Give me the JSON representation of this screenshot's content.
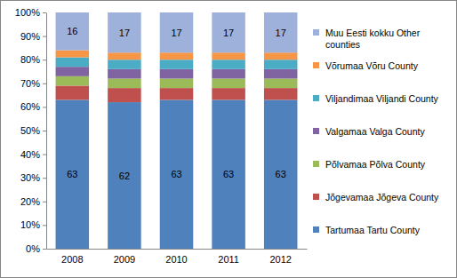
{
  "chart_data": {
    "type": "bar",
    "stacked": true,
    "grid": false,
    "legend": "right",
    "categories": [
      "2008",
      "2009",
      "2010",
      "2011",
      "2012"
    ],
    "ylim": [
      0,
      100
    ],
    "yticks": [
      {
        "value": 0,
        "label": "0%"
      },
      {
        "value": 10,
        "label": "10%"
      },
      {
        "value": 20,
        "label": "20%"
      },
      {
        "value": 30,
        "label": "30%"
      },
      {
        "value": 40,
        "label": "40%"
      },
      {
        "value": 50,
        "label": "50%"
      },
      {
        "value": 60,
        "label": "60%"
      },
      {
        "value": 70,
        "label": "70%"
      },
      {
        "value": 80,
        "label": "80%"
      },
      {
        "value": 90,
        "label": "90%"
      },
      {
        "value": 100,
        "label": "100%"
      }
    ],
    "series": [
      {
        "name": "Tartumaa Tartu County",
        "color": "#4f81bd",
        "values": [
          63,
          62,
          63,
          63,
          63
        ],
        "data_labels": true
      },
      {
        "name": "Jõgevamaa Jõgeva County",
        "color": "#c0504d",
        "values": [
          6,
          6,
          5,
          5,
          5
        ]
      },
      {
        "name": "Põlvamaa Põlva County",
        "color": "#9bbb59",
        "values": [
          4,
          4,
          4,
          4,
          4
        ]
      },
      {
        "name": "Valgamaa Valga County",
        "color": "#8064a2",
        "values": [
          4,
          4,
          4,
          4,
          4
        ]
      },
      {
        "name": "Viljandimaa Viljandi County",
        "color": "#4bacc6",
        "values": [
          4,
          4,
          4,
          4,
          4
        ]
      },
      {
        "name": "Võrumaa Võru County",
        "color": "#f79646",
        "values": [
          3,
          3,
          3,
          3,
          3
        ]
      },
      {
        "name": "Muu Eesti kokku Other counties",
        "color": "#9db1db",
        "values": [
          16,
          17,
          17,
          17,
          17
        ],
        "data_labels": true
      }
    ]
  }
}
